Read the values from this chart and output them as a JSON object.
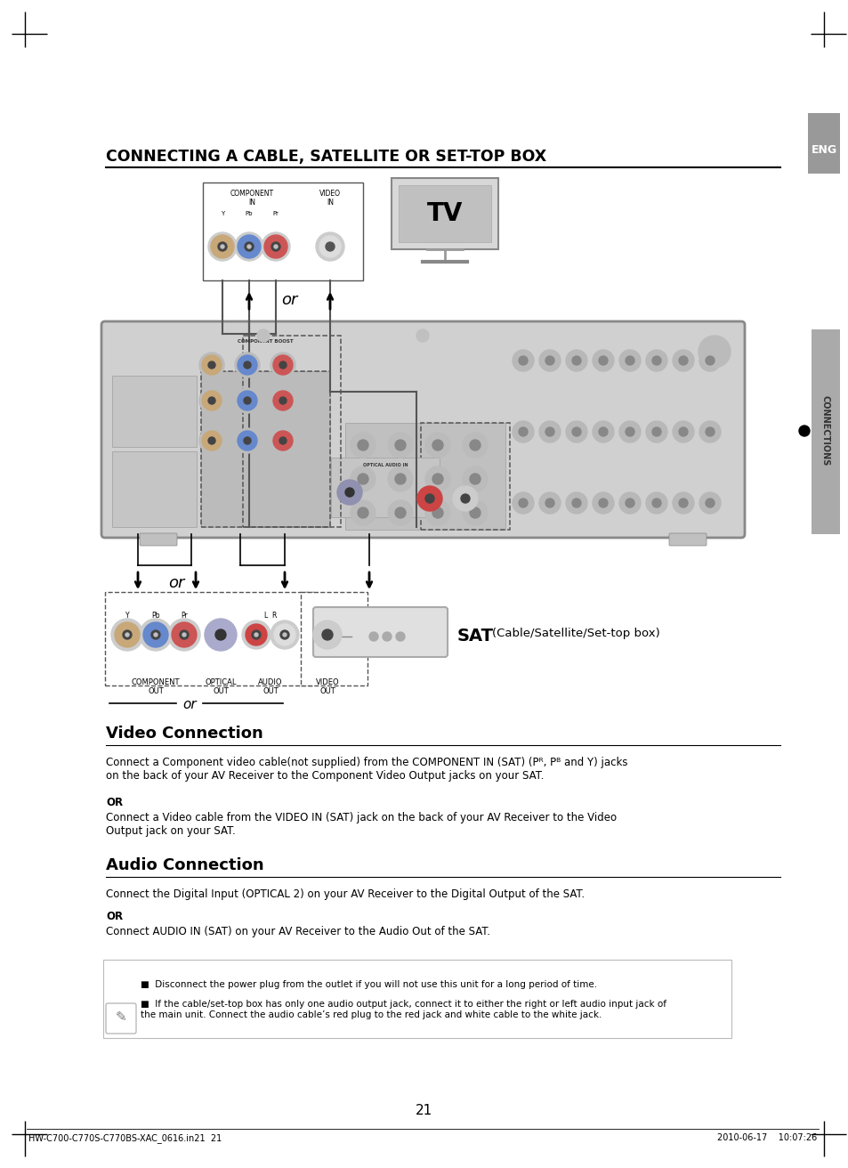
{
  "title": "CONNECTING A CABLE, SATELLITE OR SET-TOP BOX",
  "page_num": "21",
  "footer_left": "HW-C700-C770S-C770BS-XAC_0616.in21  21",
  "footer_right": "2010-06-17    10:07:26",
  "eng_label": "ENG",
  "connections_label": "CONNECTIONS",
  "section1_title": "Video Connection",
  "section1_para1": "Connect a Component video cable(not supplied) from the COMPONENT IN (SAT) (Pᴿ, Pᴮ and Y) jacks\non the back of your AV Receiver to the Component Video Output jacks on your SAT.",
  "section1_or": "OR",
  "section1_para2": "Connect a Video cable from the VIDEO IN (SAT) jack on the back of your AV Receiver to the Video\nOutput jack on your SAT.",
  "section2_title": "Audio Connection",
  "section2_para1": "Connect the Digital Input (OPTICAL 2) on your AV Receiver to the Digital Output of the SAT.",
  "section2_or": "OR",
  "section2_para2": "Connect AUDIO IN (SAT) on your AV Receiver to the Audio Out of the SAT.",
  "note_bullet1": "Disconnect the power plug from the outlet if you will not use this unit for a long period of time.",
  "note_bullet2": "If the cable/set-top box has only one audio output jack, connect it to either the right or left audio input jack of\nthe main unit. Connect the audio cable’s red plug to the red jack and white cable to the white jack.",
  "sat_label": "SAT",
  "sat_sublabel": "(Cable/Satellite/Set-top box)",
  "tv_label": "TV",
  "comp_in_label": "COMPONENT\nIN",
  "video_in_label": "VIDEO\nIN",
  "comp_out_label": "COMPONENT\nOUT",
  "optical_out_label": "OPTICAL\nOUT",
  "audio_out_label": "AUDIO\nOUT",
  "video_out_label": "VIDEO\nOUT",
  "bg_color": "#ffffff"
}
